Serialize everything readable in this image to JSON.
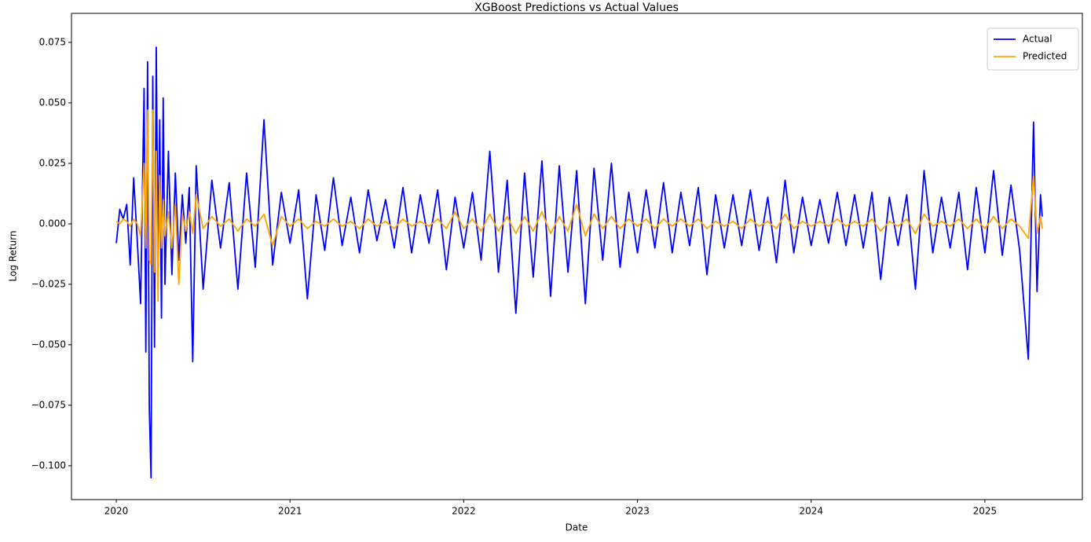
{
  "chart_data": {
    "type": "line",
    "title": "XGBoost Predictions vs Actual Values",
    "x_label": "Date",
    "y_label": "Log Return",
    "x": [
      2020.0,
      2020.02,
      2020.04,
      2020.06,
      2020.08,
      2020.1,
      2020.12,
      2020.14,
      2020.16,
      2020.17,
      2020.18,
      2020.19,
      2020.2,
      2020.21,
      2020.22,
      2020.23,
      2020.24,
      2020.25,
      2020.26,
      2020.27,
      2020.28,
      2020.3,
      2020.32,
      2020.34,
      2020.36,
      2020.38,
      2020.4,
      2020.42,
      2020.44,
      2020.46,
      2020.5,
      2020.55,
      2020.6,
      2020.65,
      2020.7,
      2020.75,
      2020.8,
      2020.85,
      2020.9,
      2020.95,
      2021.0,
      2021.05,
      2021.1,
      2021.15,
      2021.2,
      2021.25,
      2021.3,
      2021.35,
      2021.4,
      2021.45,
      2021.5,
      2021.55,
      2021.6,
      2021.65,
      2021.7,
      2021.75,
      2021.8,
      2021.85,
      2021.9,
      2021.95,
      2022.0,
      2022.05,
      2022.1,
      2022.15,
      2022.2,
      2022.25,
      2022.3,
      2022.35,
      2022.4,
      2022.45,
      2022.5,
      2022.55,
      2022.6,
      2022.65,
      2022.7,
      2022.75,
      2022.8,
      2022.85,
      2022.9,
      2022.95,
      2023.0,
      2023.05,
      2023.1,
      2023.15,
      2023.2,
      2023.25,
      2023.3,
      2023.35,
      2023.4,
      2023.45,
      2023.5,
      2023.55,
      2023.6,
      2023.65,
      2023.7,
      2023.75,
      2023.8,
      2023.85,
      2023.9,
      2023.95,
      2024.0,
      2024.05,
      2024.1,
      2024.15,
      2024.2,
      2024.25,
      2024.3,
      2024.35,
      2024.4,
      2024.45,
      2024.5,
      2024.55,
      2024.6,
      2024.65,
      2024.7,
      2024.75,
      2024.8,
      2024.85,
      2024.9,
      2024.95,
      2025.0,
      2025.05,
      2025.1,
      2025.15,
      2025.2,
      2025.25,
      2025.28,
      2025.3,
      2025.32,
      2025.33
    ],
    "series": [
      {
        "name": "Actual",
        "color": "#0000ff",
        "values": [
          -0.008,
          0.006,
          0.002,
          0.008,
          -0.017,
          0.019,
          -0.006,
          -0.033,
          0.056,
          -0.053,
          0.067,
          -0.076,
          -0.105,
          0.061,
          -0.051,
          0.073,
          -0.012,
          0.043,
          -0.039,
          0.052,
          -0.025,
          0.03,
          -0.021,
          0.021,
          -0.015,
          0.012,
          -0.008,
          0.015,
          -0.057,
          0.024,
          -0.027,
          0.018,
          -0.01,
          0.017,
          -0.027,
          0.021,
          -0.018,
          0.043,
          -0.017,
          0.013,
          -0.008,
          0.014,
          -0.031,
          0.012,
          -0.011,
          0.019,
          -0.009,
          0.011,
          -0.012,
          0.014,
          -0.007,
          0.01,
          -0.01,
          0.015,
          -0.012,
          0.012,
          -0.008,
          0.014,
          -0.019,
          0.011,
          -0.01,
          0.013,
          -0.015,
          0.03,
          -0.02,
          0.018,
          -0.037,
          0.021,
          -0.022,
          0.026,
          -0.03,
          0.024,
          -0.02,
          0.022,
          -0.033,
          0.023,
          -0.015,
          0.025,
          -0.018,
          0.013,
          -0.012,
          0.014,
          -0.01,
          0.017,
          -0.012,
          0.013,
          -0.009,
          0.015,
          -0.021,
          0.012,
          -0.01,
          0.012,
          -0.009,
          0.014,
          -0.011,
          0.011,
          -0.016,
          0.018,
          -0.012,
          0.011,
          -0.009,
          0.01,
          -0.008,
          0.013,
          -0.009,
          0.012,
          -0.01,
          0.013,
          -0.023,
          0.011,
          -0.009,
          0.012,
          -0.027,
          0.022,
          -0.012,
          0.011,
          -0.01,
          0.013,
          -0.019,
          0.015,
          -0.012,
          0.022,
          -0.013,
          0.016,
          -0.011,
          -0.056,
          0.042,
          -0.028,
          0.012,
          0.003
        ]
      },
      {
        "name": "Predicted",
        "color": "#ffa500",
        "values": [
          0.001,
          0.0,
          0.002,
          0.001,
          -0.001,
          0.002,
          0.0,
          -0.005,
          0.025,
          -0.01,
          0.047,
          -0.015,
          -0.017,
          0.047,
          -0.02,
          0.03,
          -0.032,
          0.02,
          -0.01,
          0.01,
          -0.005,
          0.005,
          -0.01,
          0.008,
          -0.025,
          0.004,
          -0.003,
          0.005,
          -0.004,
          0.012,
          -0.002,
          0.003,
          -0.001,
          0.002,
          -0.003,
          0.002,
          -0.001,
          0.004,
          -0.009,
          0.003,
          -0.001,
          0.002,
          -0.002,
          0.001,
          -0.001,
          0.002,
          -0.001,
          0.001,
          -0.002,
          0.002,
          -0.001,
          0.001,
          -0.002,
          0.002,
          -0.001,
          0.001,
          -0.001,
          0.002,
          -0.002,
          0.005,
          -0.002,
          0.002,
          -0.003,
          0.004,
          -0.003,
          0.003,
          -0.004,
          0.003,
          -0.003,
          0.005,
          -0.004,
          0.003,
          -0.003,
          0.008,
          -0.005,
          0.004,
          -0.002,
          0.003,
          -0.002,
          0.002,
          -0.001,
          0.002,
          -0.002,
          0.002,
          -0.001,
          0.002,
          -0.001,
          0.002,
          -0.002,
          0.001,
          -0.001,
          0.001,
          -0.002,
          0.002,
          -0.001,
          0.001,
          -0.002,
          0.004,
          -0.002,
          0.001,
          -0.001,
          0.001,
          -0.001,
          0.002,
          -0.001,
          0.001,
          -0.001,
          0.002,
          -0.003,
          0.001,
          -0.001,
          0.002,
          -0.004,
          0.004,
          -0.001,
          0.001,
          -0.001,
          0.002,
          -0.002,
          0.002,
          -0.002,
          0.003,
          -0.002,
          0.002,
          -0.001,
          -0.006,
          0.02,
          -0.004,
          0.003,
          -0.002
        ]
      }
    ],
    "xlim": [
      2019.742,
      2025.561
    ],
    "xticks": [
      2020,
      2021,
      2022,
      2023,
      2024,
      2025
    ],
    "ylim": [
      -0.114,
      0.087
    ],
    "yticks": [
      {
        "value": -0.1,
        "label": "−0.100"
      },
      {
        "value": -0.075,
        "label": "−0.075"
      },
      {
        "value": -0.05,
        "label": "−0.050"
      },
      {
        "value": -0.025,
        "label": "−0.025"
      },
      {
        "value": 0,
        "label": "0.000"
      },
      {
        "value": 0.025,
        "label": "0.025"
      },
      {
        "value": 0.05,
        "label": "0.050"
      },
      {
        "value": 0.075,
        "label": "0.075"
      }
    ],
    "legend": "upper right"
  }
}
